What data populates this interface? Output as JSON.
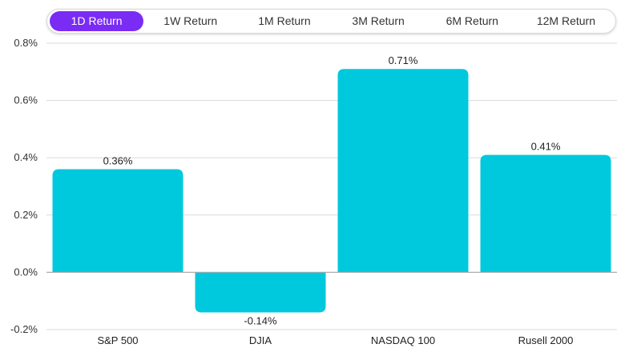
{
  "tabs": [
    {
      "label": "1D Return",
      "active": true
    },
    {
      "label": "1W Return",
      "active": false
    },
    {
      "label": "1M Return",
      "active": false
    },
    {
      "label": "3M Return",
      "active": false
    },
    {
      "label": "6M Return",
      "active": false
    },
    {
      "label": "12M Return",
      "active": false
    }
  ],
  "colors": {
    "accent": "#7a2cf5",
    "bar": "#00c9dd",
    "grid": "#d9d9d9",
    "zero_line": "#aaaaaa"
  },
  "chart_data": {
    "type": "bar",
    "title": "",
    "xlabel": "",
    "ylabel": "",
    "categories": [
      "S&P 500",
      "DJIA",
      "NASDAQ 100",
      "Rusell 2000"
    ],
    "values": [
      0.36,
      -0.14,
      0.71,
      0.41
    ],
    "data_labels": [
      "0.36%",
      "-0.14%",
      "0.71%",
      "0.41%"
    ],
    "ylim": [
      -0.2,
      0.8
    ],
    "yticks": [
      0.8,
      0.6,
      0.4,
      0.2,
      0.0,
      -0.2
    ],
    "ytick_labels": [
      "0.8%",
      "0.6%",
      "0.4%",
      "0.2%",
      "0.0%",
      "-0.2%"
    ],
    "grid": true,
    "legend": "none"
  }
}
